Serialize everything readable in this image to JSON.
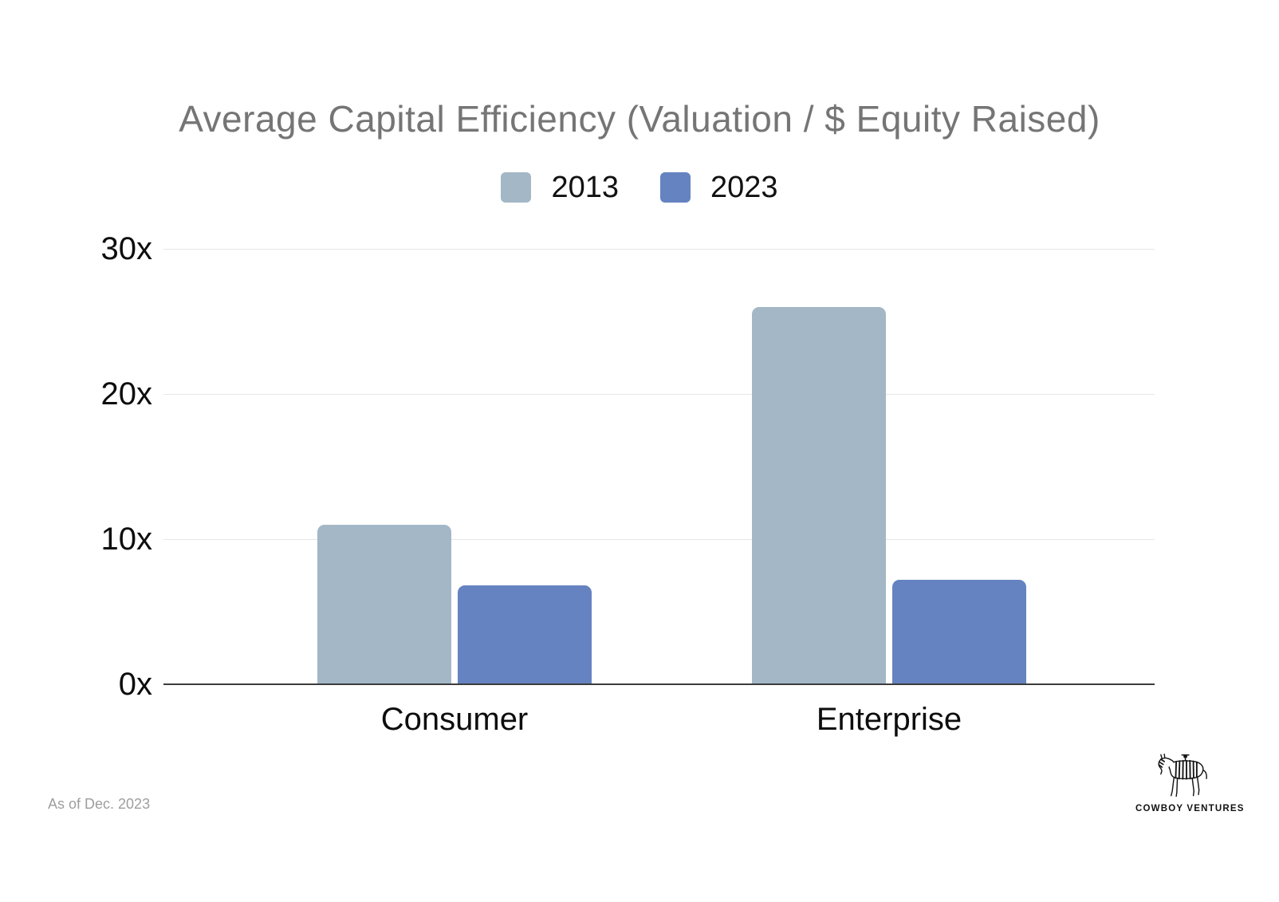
{
  "title": "Average Capital Efficiency (Valuation / $ Equity Raised)",
  "footer": {
    "note": "As of Dec. 2023",
    "logo_text": "COWBOY VENTURES"
  },
  "chart_data": {
    "type": "bar",
    "title": "Average Capital Efficiency (Valuation / $ Equity Raised)",
    "categories": [
      "Consumer",
      "Enterprise"
    ],
    "series": [
      {
        "name": "2013",
        "color": "#a3b7c6",
        "values": [
          11,
          26
        ]
      },
      {
        "name": "2023",
        "color": "#6583c0",
        "values": [
          6.8,
          7.2
        ]
      }
    ],
    "xlabel": "",
    "ylabel": "",
    "ylim": [
      0,
      32
    ],
    "y_ticks": [
      {
        "value": 0,
        "label": "0x"
      },
      {
        "value": 10,
        "label": "10x"
      },
      {
        "value": 20,
        "label": "20x"
      },
      {
        "value": 30,
        "label": "30x"
      }
    ],
    "grid": true,
    "legend_position": "top",
    "colors": {
      "title": "#757575",
      "axis_labels": "#0d0d0d",
      "gridline": "#e6e6e6",
      "axis_line": "#3c3c3c",
      "footnote": "#9e9e9e"
    }
  }
}
